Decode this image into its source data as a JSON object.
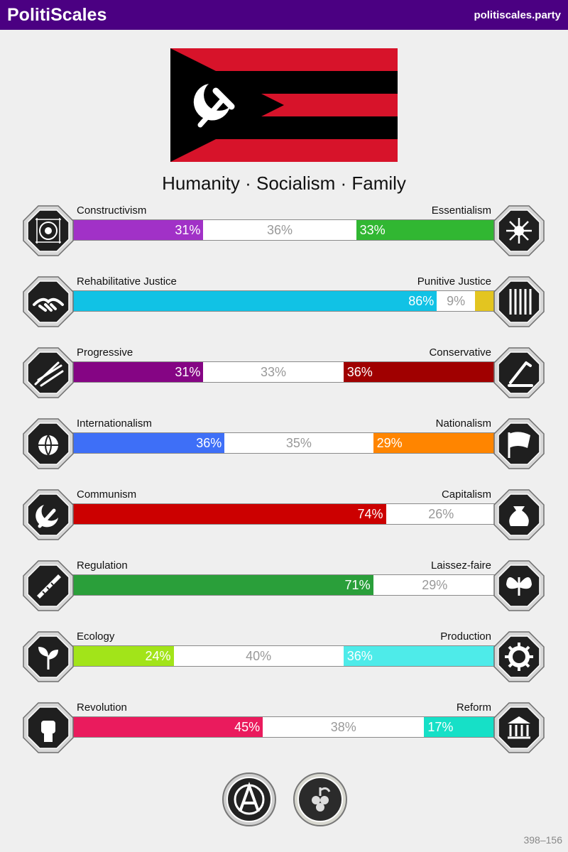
{
  "header": {
    "title": "PolitiScales",
    "site": "politiscales.party"
  },
  "slogan": "Humanity · Socialism · Family",
  "flag": {
    "stripe_color": "#d7132a",
    "field_color": "#000000",
    "symbol": "hammer-sickle-icon"
  },
  "axes": [
    {
      "left_label": "Constructivism",
      "right_label": "Essentialism",
      "left_value": 31,
      "center_value": 36,
      "right_value": 33,
      "left_text": "31%",
      "center_text": "36%",
      "right_text": "33%",
      "left_color": "#a131c7",
      "right_color": "#31b732",
      "left_icon": "constructivism-icon",
      "right_icon": "essentialism-icon"
    },
    {
      "left_label": "Rehabilitative Justice",
      "right_label": "Punitive Justice",
      "left_value": 86,
      "center_value": 9,
      "right_value": 5,
      "left_text": "86%",
      "center_text": "9%",
      "right_text": "",
      "left_color": "#11c2e5",
      "right_color": "#e3c520",
      "left_icon": "handshake-icon",
      "right_icon": "prison-bars-icon"
    },
    {
      "left_label": "Progressive",
      "right_label": "Conservative",
      "left_value": 31,
      "center_value": 33,
      "right_value": 36,
      "left_text": "31%",
      "center_text": "33%",
      "right_text": "36%",
      "left_color": "#850584",
      "right_color": "#a00000",
      "left_icon": "progressive-icon",
      "right_icon": "conservative-icon"
    },
    {
      "left_label": "Internationalism",
      "right_label": "Nationalism",
      "left_value": 36,
      "center_value": 35,
      "right_value": 29,
      "left_text": "36%",
      "center_text": "35%",
      "right_text": "29%",
      "left_color": "#3e6ff7",
      "right_color": "#ff8500",
      "left_icon": "globe-icon",
      "right_icon": "flag-icon"
    },
    {
      "left_label": "Communism",
      "right_label": "Capitalism",
      "left_value": 74,
      "center_value": 26,
      "right_value": 0,
      "left_text": "74%",
      "center_text": "26%",
      "right_text": "",
      "left_color": "#cc0000",
      "right_color": "#ffe000",
      "left_icon": "hammer-sickle-icon",
      "right_icon": "money-bag-icon"
    },
    {
      "left_label": "Regulation",
      "right_label": "Laissez-faire",
      "left_value": 71,
      "center_value": 29,
      "right_value": 0,
      "left_text": "71%",
      "center_text": "29%",
      "right_text": "",
      "left_color": "#2a9f3a",
      "right_color": "#17a0c0",
      "left_icon": "ruler-icon",
      "right_icon": "butterfly-icon"
    },
    {
      "left_label": "Ecology",
      "right_label": "Production",
      "left_value": 24,
      "center_value": 40,
      "right_value": 36,
      "left_text": "24%",
      "center_text": "40%",
      "right_text": "36%",
      "left_color": "#a2e419",
      "right_color": "#4eebe9",
      "left_icon": "ecology-icon",
      "right_icon": "gear-icon"
    },
    {
      "left_label": "Revolution",
      "right_label": "Reform",
      "left_value": 45,
      "center_value": 38,
      "right_value": 17,
      "left_text": "45%",
      "center_text": "38%",
      "right_text": "17%",
      "left_color": "#ea1b5d",
      "right_color": "#16e0c7",
      "left_icon": "fist-icon",
      "right_icon": "parliament-icon"
    }
  ],
  "seals": [
    {
      "icon": "anarchism-seal-icon"
    },
    {
      "icon": "vegetarian-seal-icon"
    }
  ],
  "footer": {
    "code": "398–156"
  }
}
